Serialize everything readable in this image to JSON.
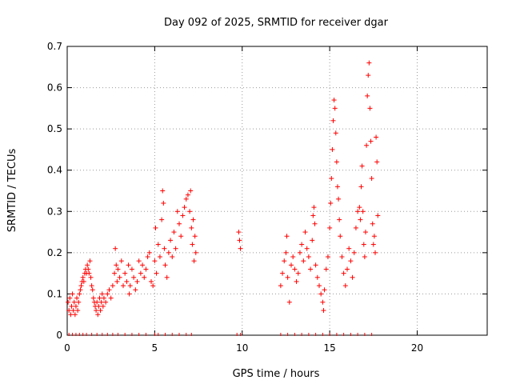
{
  "chart_data": {
    "type": "scatter",
    "title": "Day 092 of 2025, SRMTID for receiver dgar",
    "xlabel": "GPS time / hours",
    "ylabel": "SRMTID / TECUs",
    "xlim": [
      0,
      24
    ],
    "ylim": [
      0,
      0.7
    ],
    "xticks": [
      0,
      5,
      10,
      15,
      20
    ],
    "yticks": [
      0,
      0.1,
      0.2,
      0.3,
      0.4,
      0.5,
      0.6,
      0.7
    ],
    "xtick_labels": [
      "0",
      "5",
      "10",
      "15",
      "20"
    ],
    "ytick_labels": [
      "0",
      "0.1",
      "0.2",
      "0.3",
      "0.4",
      "0.5",
      "0.6",
      "0.7"
    ],
    "grid": true,
    "marker": "+",
    "series": [
      {
        "name": "SRMTID",
        "color": "#ff0000",
        "points": [
          [
            0.05,
            0.08
          ],
          [
            0.1,
            0.06
          ],
          [
            0.15,
            0.09
          ],
          [
            0.2,
            0.05
          ],
          [
            0.25,
            0.07
          ],
          [
            0.3,
            0.1
          ],
          [
            0.35,
            0.06
          ],
          [
            0.4,
            0.08
          ],
          [
            0.45,
            0.05
          ],
          [
            0.5,
            0.07
          ],
          [
            0.55,
            0.09
          ],
          [
            0.6,
            0.06
          ],
          [
            0.65,
            0.08
          ],
          [
            0.7,
            0.1
          ],
          [
            0.75,
            0.11
          ],
          [
            0.8,
            0.12
          ],
          [
            0.85,
            0.13
          ],
          [
            0.9,
            0.14
          ],
          [
            0.95,
            0.13
          ],
          [
            1.0,
            0.15
          ],
          [
            1.05,
            0.16
          ],
          [
            1.1,
            0.15
          ],
          [
            1.15,
            0.17
          ],
          [
            1.2,
            0.16
          ],
          [
            1.25,
            0.15
          ],
          [
            1.3,
            0.18
          ],
          [
            1.35,
            0.14
          ],
          [
            1.4,
            0.12
          ],
          [
            1.45,
            0.11
          ],
          [
            1.5,
            0.09
          ],
          [
            1.55,
            0.08
          ],
          [
            1.6,
            0.07
          ],
          [
            1.65,
            0.06
          ],
          [
            1.7,
            0.08
          ],
          [
            1.75,
            0.05
          ],
          [
            1.8,
            0.07
          ],
          [
            1.85,
            0.09
          ],
          [
            1.9,
            0.06
          ],
          [
            1.95,
            0.08
          ],
          [
            2.0,
            0.1
          ],
          [
            2.05,
            0.07
          ],
          [
            2.1,
            0.09
          ],
          [
            2.2,
            0.08
          ],
          [
            2.3,
            0.1
          ],
          [
            2.4,
            0.11
          ],
          [
            2.5,
            0.09
          ],
          [
            2.6,
            0.12
          ],
          [
            2.7,
            0.15
          ],
          [
            2.75,
            0.21
          ],
          [
            2.8,
            0.17
          ],
          [
            2.85,
            0.13
          ],
          [
            2.9,
            0.16
          ],
          [
            3.0,
            0.14
          ],
          [
            3.1,
            0.18
          ],
          [
            3.2,
            0.12
          ],
          [
            3.3,
            0.15
          ],
          [
            3.4,
            0.13
          ],
          [
            3.5,
            0.17
          ],
          [
            3.55,
            0.1
          ],
          [
            3.6,
            0.12
          ],
          [
            3.7,
            0.16
          ],
          [
            3.8,
            0.14
          ],
          [
            3.9,
            0.11
          ],
          [
            4.0,
            0.13
          ],
          [
            4.1,
            0.18
          ],
          [
            4.2,
            0.15
          ],
          [
            4.3,
            0.17
          ],
          [
            4.4,
            0.14
          ],
          [
            4.5,
            0.16
          ],
          [
            4.6,
            0.19
          ],
          [
            4.7,
            0.2
          ],
          [
            4.8,
            0.13
          ],
          [
            4.9,
            0.12
          ],
          [
            5.0,
            0.18
          ],
          [
            5.05,
            0.26
          ],
          [
            5.1,
            0.15
          ],
          [
            5.2,
            0.22
          ],
          [
            5.3,
            0.19
          ],
          [
            5.4,
            0.28
          ],
          [
            5.45,
            0.35
          ],
          [
            5.5,
            0.32
          ],
          [
            5.55,
            0.21
          ],
          [
            5.6,
            0.17
          ],
          [
            5.7,
            0.14
          ],
          [
            5.8,
            0.2
          ],
          [
            5.9,
            0.23
          ],
          [
            6.0,
            0.19
          ],
          [
            6.1,
            0.25
          ],
          [
            6.2,
            0.21
          ],
          [
            6.3,
            0.3
          ],
          [
            6.4,
            0.27
          ],
          [
            6.5,
            0.24
          ],
          [
            6.6,
            0.29
          ],
          [
            6.7,
            0.31
          ],
          [
            6.8,
            0.33
          ],
          [
            6.9,
            0.34
          ],
          [
            7.0,
            0.3
          ],
          [
            7.05,
            0.35
          ],
          [
            7.1,
            0.26
          ],
          [
            7.15,
            0.22
          ],
          [
            7.2,
            0.28
          ],
          [
            7.25,
            0.18
          ],
          [
            7.3,
            0.24
          ],
          [
            7.35,
            0.2
          ],
          [
            9.8,
            0.25
          ],
          [
            9.85,
            0.23
          ],
          [
            9.9,
            0.21
          ],
          [
            12.2,
            0.12
          ],
          [
            12.3,
            0.15
          ],
          [
            12.4,
            0.18
          ],
          [
            12.5,
            0.2
          ],
          [
            12.55,
            0.24
          ],
          [
            12.6,
            0.14
          ],
          [
            12.7,
            0.08
          ],
          [
            12.8,
            0.17
          ],
          [
            12.9,
            0.19
          ],
          [
            13.0,
            0.16
          ],
          [
            13.1,
            0.13
          ],
          [
            13.2,
            0.15
          ],
          [
            13.3,
            0.2
          ],
          [
            13.4,
            0.22
          ],
          [
            13.5,
            0.18
          ],
          [
            13.6,
            0.25
          ],
          [
            13.7,
            0.21
          ],
          [
            13.8,
            0.19
          ],
          [
            13.9,
            0.16
          ],
          [
            14.0,
            0.23
          ],
          [
            14.05,
            0.29
          ],
          [
            14.1,
            0.31
          ],
          [
            14.15,
            0.27
          ],
          [
            14.2,
            0.17
          ],
          [
            14.3,
            0.14
          ],
          [
            14.4,
            0.12
          ],
          [
            14.5,
            0.1
          ],
          [
            14.6,
            0.08
          ],
          [
            14.65,
            0.06
          ],
          [
            14.7,
            0.11
          ],
          [
            14.8,
            0.16
          ],
          [
            14.9,
            0.19
          ],
          [
            15.0,
            0.26
          ],
          [
            15.05,
            0.32
          ],
          [
            15.1,
            0.38
          ],
          [
            15.15,
            0.45
          ],
          [
            15.2,
            0.52
          ],
          [
            15.25,
            0.57
          ],
          [
            15.3,
            0.55
          ],
          [
            15.35,
            0.49
          ],
          [
            15.4,
            0.42
          ],
          [
            15.45,
            0.36
          ],
          [
            15.5,
            0.33
          ],
          [
            15.55,
            0.28
          ],
          [
            15.6,
            0.24
          ],
          [
            15.7,
            0.19
          ],
          [
            15.8,
            0.15
          ],
          [
            15.9,
            0.12
          ],
          [
            16.0,
            0.16
          ],
          [
            16.1,
            0.21
          ],
          [
            16.2,
            0.18
          ],
          [
            16.3,
            0.14
          ],
          [
            16.4,
            0.2
          ],
          [
            16.5,
            0.26
          ],
          [
            16.6,
            0.3
          ],
          [
            16.7,
            0.31
          ],
          [
            16.75,
            0.28
          ],
          [
            16.8,
            0.36
          ],
          [
            16.85,
            0.41
          ],
          [
            16.9,
            0.3
          ],
          [
            16.95,
            0.22
          ],
          [
            17.0,
            0.19
          ],
          [
            17.05,
            0.25
          ],
          [
            17.1,
            0.46
          ],
          [
            17.15,
            0.58
          ],
          [
            17.2,
            0.63
          ],
          [
            17.25,
            0.66
          ],
          [
            17.3,
            0.55
          ],
          [
            17.35,
            0.47
          ],
          [
            17.4,
            0.38
          ],
          [
            17.45,
            0.27
          ],
          [
            17.5,
            0.22
          ],
          [
            17.55,
            0.24
          ],
          [
            17.6,
            0.2
          ],
          [
            17.65,
            0.48
          ],
          [
            17.7,
            0.42
          ],
          [
            17.75,
            0.29
          ]
        ],
        "zero_points_x": [
          0.1,
          0.3,
          0.5,
          0.7,
          0.9,
          1.1,
          1.4,
          1.7,
          2.0,
          2.3,
          2.6,
          2.9,
          3.3,
          3.7,
          4.1,
          4.5,
          5.0,
          5.2,
          5.6,
          6.0,
          6.4,
          6.8,
          7.1,
          9.7,
          9.9,
          12.2,
          12.6,
          13.0,
          13.4,
          13.8,
          14.2,
          14.6,
          15.0,
          15.4,
          15.8,
          16.2,
          16.6,
          17.0,
          17.4
        ]
      }
    ]
  }
}
